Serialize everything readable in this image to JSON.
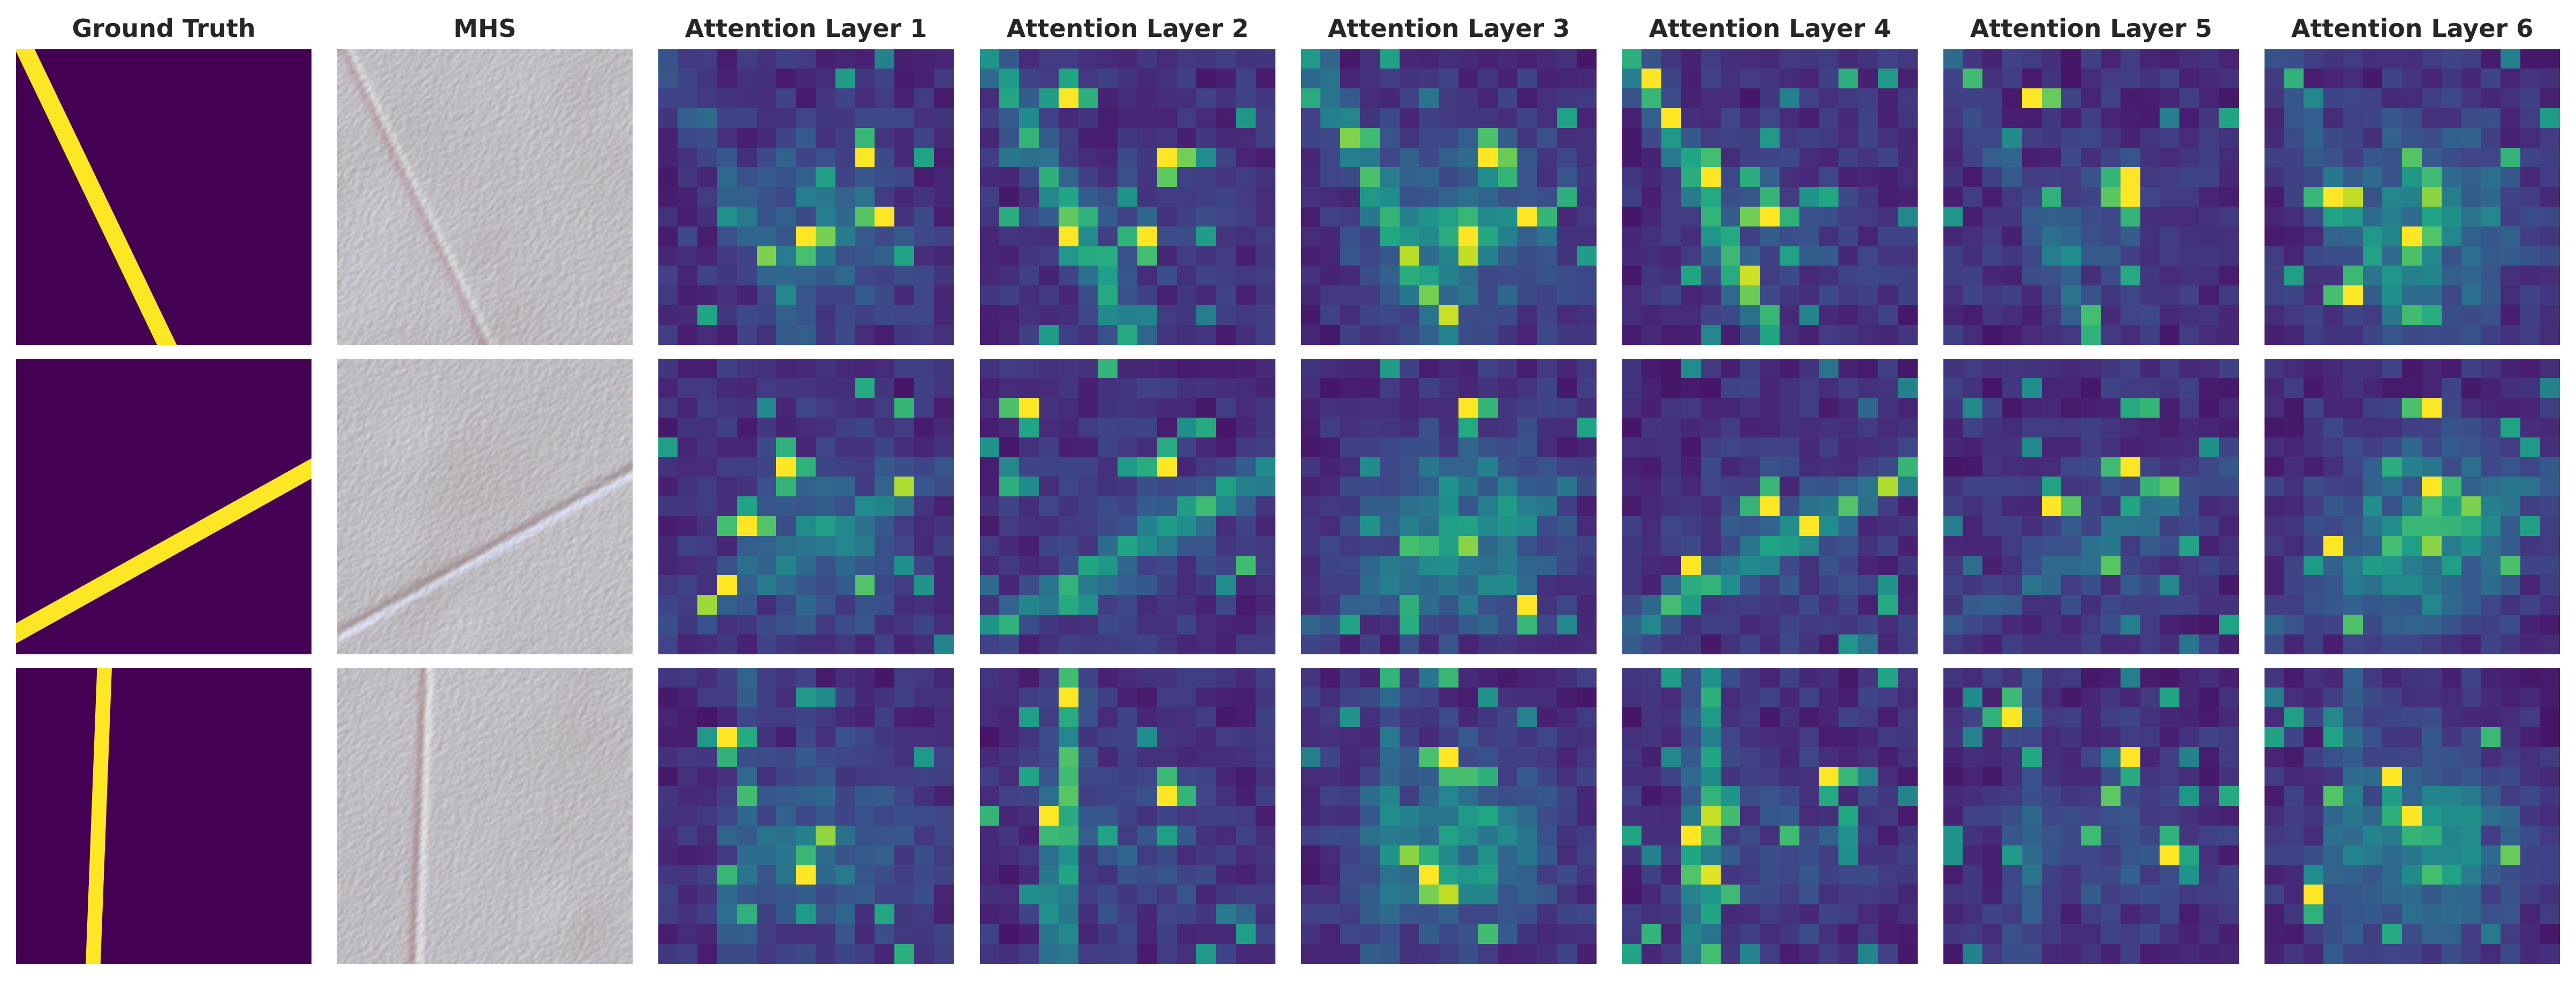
{
  "figure": {
    "columns": [
      {
        "title": "Ground Truth",
        "kind": "mask"
      },
      {
        "title": "MHS",
        "kind": "hillshade"
      },
      {
        "title": "Attention Layer 1",
        "kind": "attention"
      },
      {
        "title": "Attention Layer 2",
        "kind": "attention"
      },
      {
        "title": "Attention Layer 3",
        "kind": "attention"
      },
      {
        "title": "Attention Layer 4",
        "kind": "attention"
      },
      {
        "title": "Attention Layer 5",
        "kind": "attention"
      },
      {
        "title": "Attention Layer 6",
        "kind": "attention"
      }
    ],
    "rows": 3,
    "ground_truth_lines": [
      {
        "from": [
          0.02,
          -0.02
        ],
        "to": [
          0.52,
          1.02
        ],
        "width": 0.06
      },
      {
        "from": [
          -0.02,
          0.94
        ],
        "to": [
          1.02,
          0.36
        ],
        "width": 0.06
      },
      {
        "from": [
          0.3,
          -0.02
        ],
        "to": [
          0.26,
          1.02
        ],
        "width": 0.05
      }
    ],
    "colormap": "viridis",
    "colors": {
      "mask_background": "#440154",
      "mask_line": "#fde725",
      "title_text": "#262626"
    }
  }
}
